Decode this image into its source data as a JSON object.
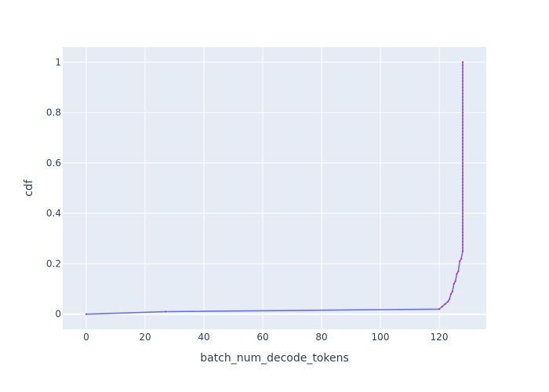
{
  "chart_data": {
    "type": "line",
    "xlabel": "batch_num_decode_tokens",
    "ylabel": "cdf",
    "xlim": [
      -8,
      136
    ],
    "ylim": [
      -0.06,
      1.06
    ],
    "xticks": [
      0,
      20,
      40,
      60,
      80,
      100,
      120
    ],
    "yticks": [
      0,
      0.2,
      0.4,
      0.6,
      0.8,
      1
    ],
    "ytick_labels": [
      "0",
      "0.2",
      "0.4",
      "0.6",
      "0.8",
      "1"
    ],
    "grid": true,
    "plot_background": "#e5ecf6",
    "grid_color": "#ffffff",
    "series": [
      {
        "color": "#636efa",
        "marker_color": "#e0218a",
        "x": [
          0,
          27,
          120,
          121,
          122,
          123,
          123.5,
          124,
          124.5,
          125,
          125.5,
          126,
          126.5,
          127,
          127.5,
          128,
          128
        ],
        "y": [
          0,
          0.01,
          0.02,
          0.03,
          0.04,
          0.05,
          0.06,
          0.08,
          0.09,
          0.12,
          0.13,
          0.16,
          0.17,
          0.21,
          0.22,
          0.25,
          1.0
        ]
      }
    ]
  }
}
